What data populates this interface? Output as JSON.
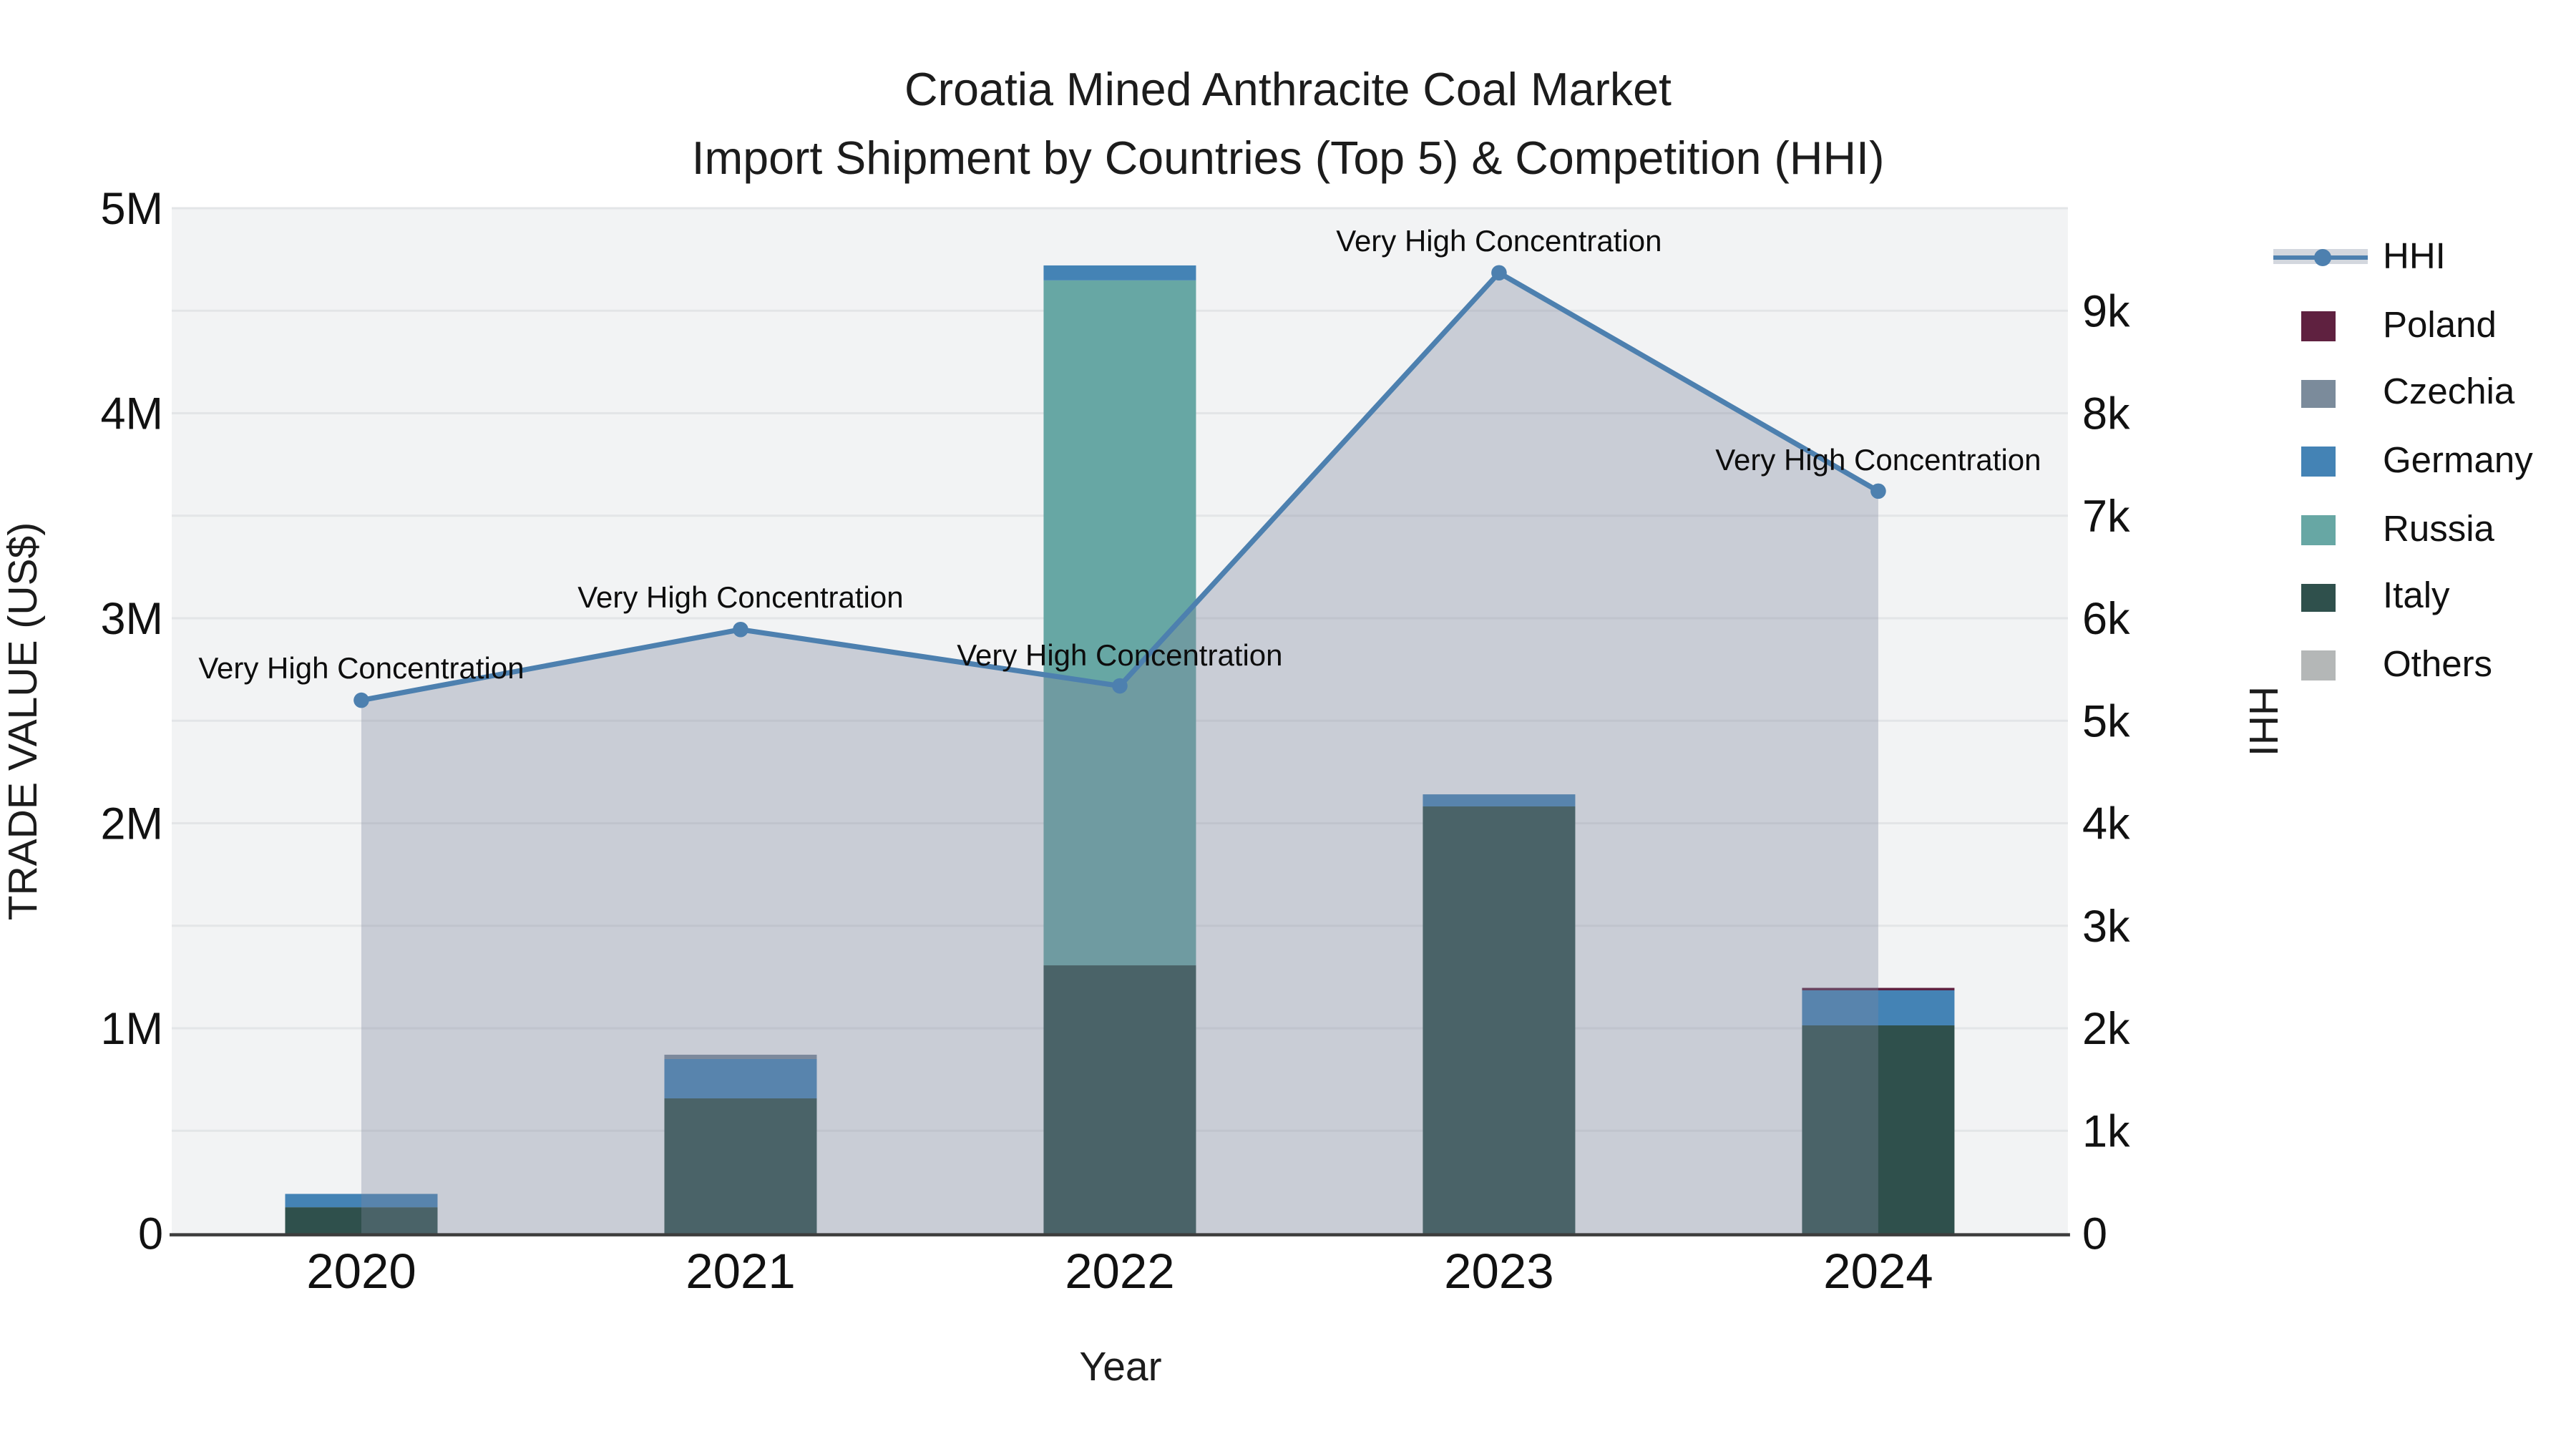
{
  "title": "Croatia Mined Anthracite Coal Market",
  "subtitle": "Import Shipment by Countries (Top 5) & Competition (HHI)",
  "annotation_text": "Very High Concentration",
  "colors": {
    "plot_background": "#f2f3f4",
    "gridline": "#e3e5e7",
    "axis_line": "#3d3d3d",
    "hhi_line": "#4d80af",
    "hhi_area_fill": "rgba(125,134,158,0.35)",
    "poland": "#5f2140",
    "czechia": "#7b8b9b",
    "germany": "#4483b5",
    "russia": "#67a7a4",
    "italy": "#2f504c",
    "others": "#b4b7b7"
  },
  "legend": {
    "items": [
      {
        "label": "HHI",
        "type": "line",
        "color": "#4d80af"
      },
      {
        "label": "Poland",
        "type": "square",
        "color": "#5f2140"
      },
      {
        "label": "Czechia",
        "type": "square",
        "color": "#7b8b9b"
      },
      {
        "label": "Germany",
        "type": "square",
        "color": "#4483b5"
      },
      {
        "label": "Russia",
        "type": "square",
        "color": "#67a7a4"
      },
      {
        "label": "Italy",
        "type": "square",
        "color": "#2f504c"
      },
      {
        "label": "Others",
        "type": "square",
        "color": "#b4b7b7"
      }
    ]
  },
  "chart_data": {
    "type": "bar+line combo (stacked bars, dual y-axis)",
    "categories": [
      "2020",
      "2021",
      "2022",
      "2023",
      "2024"
    ],
    "bar_series": [
      {
        "name": "Poland",
        "color": "#5f2140",
        "values_usd": [
          0,
          0,
          0,
          0,
          12000
        ]
      },
      {
        "name": "Czechia",
        "color": "#7b8b9b",
        "values_usd": [
          0,
          21000,
          0,
          0,
          0
        ]
      },
      {
        "name": "Germany",
        "color": "#4483b5",
        "values_usd": [
          65000,
          192000,
          73000,
          59000,
          171000
        ]
      },
      {
        "name": "Russia",
        "color": "#67a7a4",
        "values_usd": [
          0,
          0,
          3341000,
          0,
          0
        ]
      },
      {
        "name": "Italy",
        "color": "#2f504c",
        "values_usd": [
          127000,
          658000,
          1307000,
          2082000,
          1014000
        ]
      },
      {
        "name": "Others",
        "color": "#b4b7b7",
        "values_usd": [
          0,
          0,
          0,
          0,
          0
        ]
      }
    ],
    "stack_order_bottom_to_top": [
      "Italy",
      "Russia",
      "Germany",
      "Czechia",
      "Poland",
      "Others"
    ],
    "line_series": {
      "name": "HHI",
      "color": "#4d80af",
      "values": [
        5200,
        5890,
        5340,
        9370,
        7240
      ]
    },
    "annotations": [
      {
        "category": "2020",
        "text": "Very High Concentration"
      },
      {
        "category": "2021",
        "text": "Very High Concentration"
      },
      {
        "category": "2022",
        "text": "Very High Concentration"
      },
      {
        "category": "2023",
        "text": "Very High Concentration"
      },
      {
        "category": "2024",
        "text": "Very High Concentration"
      }
    ],
    "left_axis": {
      "title": "TRADE VALUE (US$)",
      "ticks": [
        "0",
        "1M",
        "2M",
        "3M",
        "4M",
        "5M"
      ],
      "min": 0,
      "max": 5000000
    },
    "right_axis": {
      "title": "HHI",
      "ticks": [
        "0",
        "1k",
        "2k",
        "3k",
        "4k",
        "5k",
        "6k",
        "7k",
        "8k",
        "9k"
      ],
      "min": 0,
      "max": 10000
    },
    "x_axis": {
      "title": "Year"
    },
    "legend_position": "right",
    "grid": true
  }
}
